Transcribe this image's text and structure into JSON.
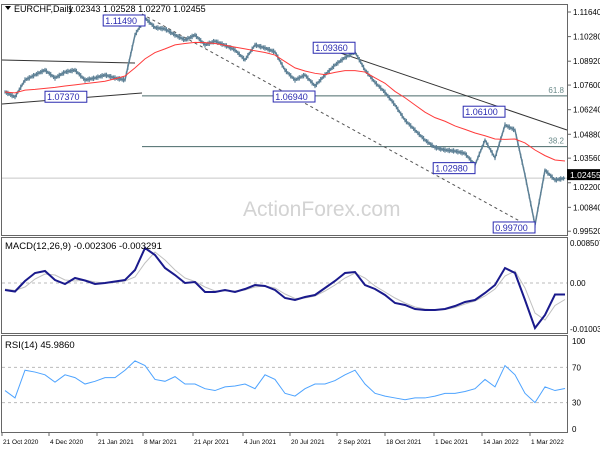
{
  "header": {
    "symbol": "EURCHF,Daily",
    "ohlc": "1.02343 1.02528 1.02270 1.02455"
  },
  "watermark": "ActionForex.com",
  "colors": {
    "price": "#5e8196",
    "ma": "#ff3b3b",
    "macd": "#1a1a8c",
    "signal": "#c0c0c0",
    "rsi": "#4da3ff",
    "label_border": "#2a2ab0",
    "current_bg": "#000000"
  },
  "chart_data": [
    {
      "type": "line",
      "panel": "price",
      "title": "EURCHF,Daily",
      "x_tick_labels": [
        "21 Oct 2020",
        "4 Dec 2020",
        "21 Jan 2021",
        "8 Mar 2021",
        "21 Apr 2021",
        "4 Jun 2021",
        "20 Jul 2021",
        "2 Sep 2021",
        "18 Oct 2021",
        "1 Dec 2021",
        "14 Jan 2022",
        "1 Mar 2022"
      ],
      "y_tick_labels": [
        "1.11640",
        "1.10280",
        "1.08920",
        "1.07600",
        "1.06240",
        "1.04880",
        "1.03560",
        "1.02200",
        "1.00840",
        "0.99520"
      ],
      "ylim": [
        0.9952,
        1.1164
      ],
      "current_price": "1.02455",
      "close": [
        1.0722,
        1.0694,
        1.0788,
        1.0816,
        1.0843,
        1.0799,
        1.0832,
        1.0843,
        1.0788,
        1.0799,
        1.0816,
        1.0799,
        1.0788,
        1.1037,
        1.1131,
        1.1078,
        1.107,
        1.1037,
        1.1009,
        1.1037,
        1.0982,
        1.1003,
        1.098,
        1.0954,
        1.0899,
        1.0982,
        1.0965,
        1.0943,
        1.0843,
        1.0788,
        1.0816,
        1.0755,
        1.0816,
        1.0871,
        1.0912,
        1.0943,
        1.0843,
        1.0775,
        1.072,
        1.065,
        1.0566,
        1.0511,
        1.0456,
        1.0415,
        1.0401,
        1.0395,
        1.0382,
        1.0318,
        1.0456,
        1.0357,
        1.0539,
        1.0511,
        1.0263,
        0.9986,
        1.029,
        1.0235,
        1.02455
      ],
      "moving_average": [
        1.0722,
        1.0717,
        1.0732,
        1.0736,
        1.0742,
        1.0747,
        1.0755,
        1.0761,
        1.0768,
        1.0774,
        1.0781,
        1.0795,
        1.081,
        1.0855,
        1.0905,
        1.094,
        1.096,
        1.0982,
        1.099,
        1.0996,
        1.0995,
        1.099,
        1.098,
        1.097,
        1.096,
        1.095,
        1.094,
        1.0926,
        1.089,
        1.0855,
        1.0838,
        1.0825,
        1.0818,
        1.083,
        1.084,
        1.084,
        1.0832,
        1.08,
        1.077,
        1.0725,
        1.069,
        1.065,
        1.061,
        1.058,
        1.056,
        1.0534,
        1.0515,
        1.0495,
        1.048,
        1.0462,
        1.046,
        1.0462,
        1.044,
        1.0401,
        1.037,
        1.0346,
        1.034
      ],
      "annotations": [
        {
          "text": "1.11490",
          "index": 14,
          "price": 1.1149
        },
        {
          "text": "1.07370",
          "index": 5,
          "price": 1.0737
        },
        {
          "text": "1.06940",
          "index": 31,
          "price": 1.0694
        },
        {
          "text": "1.09360",
          "index": 35,
          "price": 1.0936
        },
        {
          "text": "1.06100",
          "index": 50,
          "price": 1.061
        },
        {
          "text": "1.02980",
          "index": 47,
          "price": 1.0298
        },
        {
          "text": "0.99700",
          "index": 53,
          "price": 0.997
        }
      ],
      "fib_levels": [
        {
          "label": "61.8",
          "price": 1.07
        },
        {
          "label": "38.2",
          "price": 1.042
        }
      ]
    },
    {
      "type": "line",
      "panel": "macd",
      "title": "MACD(12,26,9) -0.002306 -0.003291",
      "y_tick_labels": [
        "0.008507",
        "0.00",
        "-0.010034"
      ],
      "ylim": [
        -0.010034,
        0.008507
      ],
      "macd": [
        -0.0014,
        -0.0017,
        0.0004,
        0.002,
        0.0024,
        0.0006,
        -0.0002,
        0.001,
        0.0005,
        -0.0002,
        0.0,
        0.0003,
        0.0006,
        0.0026,
        0.007,
        0.0056,
        0.003,
        0.0016,
        0.0,
        0.0002,
        -0.0018,
        -0.0018,
        -0.0014,
        -0.0018,
        -0.0012,
        -0.0004,
        -0.0006,
        -0.0014,
        -0.003,
        -0.0034,
        -0.0028,
        -0.0024,
        -0.001,
        0.0004,
        0.002,
        0.0022,
        -0.0004,
        -0.0012,
        -0.0024,
        -0.004,
        -0.0044,
        -0.0052,
        -0.0054,
        -0.0054,
        -0.0052,
        -0.0046,
        -0.0038,
        -0.0034,
        -0.002,
        -0.0004,
        0.003,
        0.002,
        -0.0034,
        -0.009,
        -0.0064,
        -0.0023,
        -0.0023
      ],
      "signal": [
        -0.0012,
        -0.0015,
        -0.0008,
        0.0008,
        0.0018,
        0.0016,
        0.0006,
        0.0004,
        0.0006,
        0.0002,
        0.0,
        0.0001,
        0.0004,
        0.0012,
        0.004,
        0.0062,
        0.0046,
        0.0026,
        0.001,
        0.0003,
        -0.0008,
        -0.0016,
        -0.0016,
        -0.0016,
        -0.0014,
        -0.0008,
        -0.0006,
        -0.001,
        -0.0022,
        -0.0031,
        -0.003,
        -0.0026,
        -0.0016,
        -0.0004,
        0.001,
        0.002,
        0.001,
        -0.0006,
        -0.0018,
        -0.003,
        -0.004,
        -0.0048,
        -0.0052,
        -0.0054,
        -0.0053,
        -0.0049,
        -0.0042,
        -0.0036,
        -0.0026,
        -0.0012,
        0.0014,
        0.0024,
        -0.001,
        -0.006,
        -0.0074,
        -0.0045,
        -0.0033
      ]
    },
    {
      "type": "line",
      "panel": "rsi",
      "title": "RSI(14) 45.9860",
      "y_tick_labels": [
        "100",
        "70",
        "30",
        "0"
      ],
      "ylim": [
        0,
        100
      ],
      "levels": [
        70,
        30
      ],
      "rsi": [
        43.7,
        35.3,
        66.8,
        64.7,
        61.6,
        53.2,
        61.6,
        58.4,
        51.1,
        54.2,
        58.4,
        58.4,
        66.8,
        77.4,
        72.1,
        56.3,
        54.2,
        59.5,
        51.1,
        51.1,
        45.8,
        43.7,
        47.9,
        48.9,
        51.1,
        45.8,
        61.6,
        56.3,
        40.5,
        37.4,
        45.8,
        51.1,
        51.1,
        55.0,
        61.6,
        66.8,
        51.1,
        40.5,
        37.4,
        35.3,
        33.2,
        35.3,
        35.3,
        37.4,
        40.5,
        40.5,
        42.6,
        45.8,
        56.3,
        47.9,
        72.1,
        61.6,
        40.5,
        30.0,
        47.9,
        43.7,
        46.0
      ]
    }
  ]
}
